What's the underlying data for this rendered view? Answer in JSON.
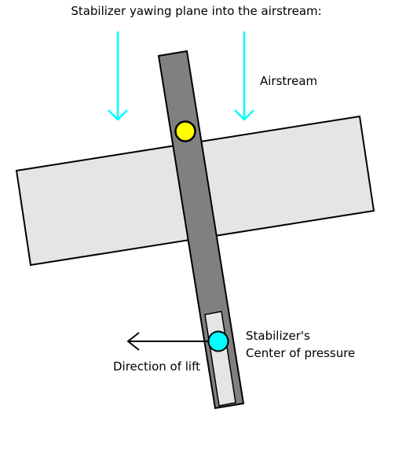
{
  "title": "Stabilizer yawing plane into the airstream:",
  "labels": {
    "airstream": "Airstream",
    "cop_line1": "Stabilizer's",
    "cop_line2": "Center of pressure",
    "lift": "Direction of lift"
  },
  "colors": {
    "wing_fill": "#e5e5e5",
    "fuselage_fill": "#808080",
    "stabilizer_fill": "#e5e5e5",
    "center_of_gravity_marker": "#ffff00",
    "center_of_pressure_marker": "#00ffff",
    "airstream_arrow": "#00ffff",
    "lift_arrow": "#000000",
    "outline": "#000000"
  }
}
